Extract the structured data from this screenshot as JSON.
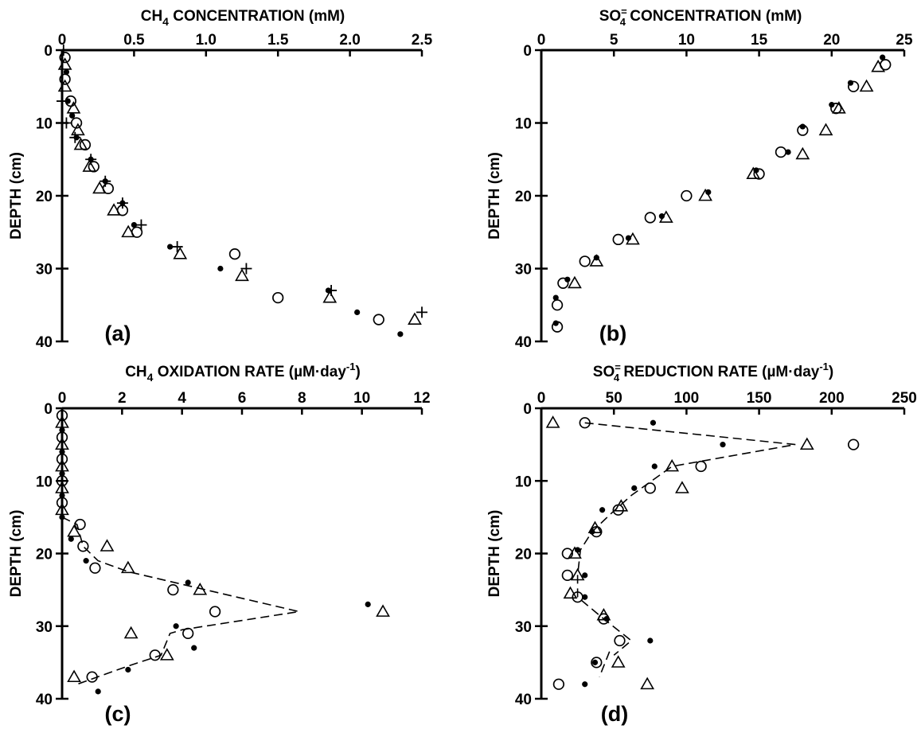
{
  "chart_data": [
    {
      "id": "a",
      "type": "scatter",
      "panel_label": "(a)",
      "xlabel_prefix": "CH",
      "xlabel_sub": "4",
      "xlabel_rest": " CONCENTRATION (mM)",
      "ylabel": "DEPTH (cm)",
      "xlim": [
        0,
        2.5
      ],
      "ylim": [
        0,
        40
      ],
      "y_reversed": true,
      "x_ticks": [
        "0",
        "0.5",
        "1.0",
        "1.5",
        "2.0",
        "2.5"
      ],
      "y_ticks": [
        "0",
        "10",
        "20",
        "30",
        "40"
      ],
      "series": [
        {
          "marker": "dot",
          "points": [
            [
              0.03,
              3
            ],
            [
              0.04,
              7
            ],
            [
              0.07,
              9
            ],
            [
              0.1,
              12
            ],
            [
              0.2,
              15
            ],
            [
              0.3,
              18
            ],
            [
              0.42,
              21
            ],
            [
              0.5,
              24
            ],
            [
              0.75,
              27
            ],
            [
              1.1,
              30
            ],
            [
              1.85,
              33
            ],
            [
              2.05,
              36
            ],
            [
              2.35,
              39
            ]
          ]
        },
        {
          "marker": "circle",
          "points": [
            [
              0.02,
              1
            ],
            [
              0.02,
              4
            ],
            [
              0.06,
              7
            ],
            [
              0.1,
              10
            ],
            [
              0.16,
              13
            ],
            [
              0.22,
              16
            ],
            [
              0.32,
              19
            ],
            [
              0.42,
              22
            ],
            [
              0.52,
              25
            ],
            [
              1.2,
              28
            ],
            [
              1.5,
              34
            ],
            [
              2.2,
              37
            ]
          ]
        },
        {
          "marker": "triangle",
          "points": [
            [
              0.02,
              2
            ],
            [
              0.02,
              5
            ],
            [
              0.08,
              8
            ],
            [
              0.11,
              11
            ],
            [
              0.13,
              13
            ],
            [
              0.19,
              16
            ],
            [
              0.26,
              19
            ],
            [
              0.36,
              22
            ],
            [
              0.46,
              25
            ],
            [
              0.82,
              28
            ],
            [
              1.25,
              31
            ],
            [
              1.86,
              34
            ],
            [
              2.45,
              37
            ]
          ]
        },
        {
          "marker": "plus",
          "points": [
            [
              0.01,
              0
            ],
            [
              0.0,
              7
            ],
            [
              0.03,
              10
            ],
            [
              0.09,
              12
            ],
            [
              0.2,
              15
            ],
            [
              0.3,
              18
            ],
            [
              0.42,
              21
            ],
            [
              0.55,
              24
            ],
            [
              0.8,
              27
            ],
            [
              1.28,
              30
            ],
            [
              1.87,
              33
            ],
            [
              2.5,
              36
            ]
          ]
        }
      ],
      "dashed_lines": []
    },
    {
      "id": "b",
      "type": "scatter",
      "panel_label": "(b)",
      "xlabel_prefix": "SO",
      "xlabel_sub": "4",
      "xlabel_sup": "=",
      "xlabel_rest": " CONCENTRATION (mM)",
      "ylabel": "DEPTH (cm)",
      "xlim": [
        0,
        25
      ],
      "ylim": [
        0,
        40
      ],
      "y_reversed": true,
      "x_ticks": [
        "0",
        "5",
        "10",
        "15",
        "20",
        "25"
      ],
      "y_ticks": [
        "0",
        "10",
        "20",
        "30",
        "40"
      ],
      "series": [
        {
          "marker": "dot",
          "points": [
            [
              23.5,
              1
            ],
            [
              21.3,
              4.5
            ],
            [
              20,
              7.5
            ],
            [
              18,
              10.5
            ],
            [
              17,
              14
            ],
            [
              14.8,
              16.5
            ],
            [
              11.5,
              19.5
            ],
            [
              8.3,
              22.8
            ],
            [
              6,
              25.8
            ],
            [
              3.8,
              28.5
            ],
            [
              1.8,
              31.5
            ],
            [
              1,
              34
            ],
            [
              1,
              37.5
            ]
          ]
        },
        {
          "marker": "circle",
          "points": [
            [
              23.7,
              2
            ],
            [
              21.5,
              5
            ],
            [
              20.3,
              8
            ],
            [
              18,
              11
            ],
            [
              16.5,
              14
            ],
            [
              15,
              17
            ],
            [
              10,
              20
            ],
            [
              7.5,
              23
            ],
            [
              5.3,
              26
            ],
            [
              3,
              29
            ],
            [
              1.5,
              32
            ],
            [
              1.1,
              35
            ],
            [
              1.1,
              38
            ]
          ]
        },
        {
          "marker": "triangle",
          "points": [
            [
              23.2,
              2.3
            ],
            [
              22.4,
              5
            ],
            [
              20.5,
              8
            ],
            [
              19.6,
              11
            ],
            [
              18,
              14.3
            ],
            [
              14.6,
              17
            ],
            [
              11.3,
              20
            ],
            [
              8.6,
              23
            ],
            [
              6.3,
              26
            ],
            [
              3.8,
              29
            ],
            [
              2.3,
              32
            ]
          ]
        }
      ],
      "dashed_lines": []
    },
    {
      "id": "c",
      "type": "scatter",
      "panel_label": "(c)",
      "xlabel_prefix": "CH",
      "xlabel_sub": "4",
      "xlabel_rest": " OXIDATION RATE (",
      "xlabel_unit": "µM·day",
      "xlabel_unit_sup": "-1",
      "xlabel_close": ")",
      "ylabel": "DEPTH (cm)",
      "xlim": [
        0,
        12
      ],
      "ylim": [
        0,
        40
      ],
      "y_reversed": true,
      "x_ticks": [
        "0",
        "2",
        "4",
        "6",
        "8",
        "10",
        "12"
      ],
      "y_ticks": [
        "0",
        "10",
        "20",
        "30",
        "40"
      ],
      "series": [
        {
          "marker": "dot",
          "points": [
            [
              0,
              3
            ],
            [
              0,
              6
            ],
            [
              0,
              9
            ],
            [
              0,
              12
            ],
            [
              0,
              15
            ],
            [
              0.3,
              18
            ],
            [
              0.8,
              21
            ],
            [
              4.2,
              24
            ],
            [
              10.2,
              27
            ],
            [
              3.8,
              30
            ],
            [
              4.4,
              33
            ],
            [
              2.2,
              36
            ],
            [
              1.2,
              39
            ]
          ]
        },
        {
          "marker": "circle",
          "points": [
            [
              0,
              1
            ],
            [
              0,
              4
            ],
            [
              0,
              7
            ],
            [
              0,
              10
            ],
            [
              0,
              13
            ],
            [
              0.6,
              16
            ],
            [
              0.7,
              19
            ],
            [
              1.1,
              22
            ],
            [
              3.7,
              25
            ],
            [
              5.1,
              28
            ],
            [
              4.2,
              31
            ],
            [
              3.1,
              34
            ],
            [
              1,
              37
            ]
          ]
        },
        {
          "marker": "triangle",
          "points": [
            [
              0,
              2
            ],
            [
              0,
              5
            ],
            [
              0,
              8
            ],
            [
              0,
              11
            ],
            [
              0,
              14
            ],
            [
              0.4,
              17
            ],
            [
              1.5,
              19
            ],
            [
              2.2,
              22
            ],
            [
              4.6,
              25
            ],
            [
              10.7,
              28
            ],
            [
              2.3,
              31
            ],
            [
              3.5,
              34
            ],
            [
              0.4,
              37
            ]
          ]
        }
      ],
      "dashed_lines": [
        [
          [
            0,
            15
          ],
          [
            0.5,
            16
          ],
          [
            0.7,
            19
          ],
          [
            1.2,
            21
          ],
          [
            2.2,
            22.5
          ],
          [
            7.9,
            28
          ],
          [
            4,
            30.5
          ],
          [
            3.6,
            31
          ],
          [
            3.3,
            34
          ],
          [
            2.2,
            35.5
          ],
          [
            0.5,
            38
          ]
        ]
      ]
    },
    {
      "id": "d",
      "type": "scatter",
      "panel_label": "(d)",
      "xlabel_prefix": "SO",
      "xlabel_sub": "4",
      "xlabel_sup": "=",
      "xlabel_rest": " REDUCTION RATE (",
      "xlabel_unit": "µM·day",
      "xlabel_unit_sup": "-1",
      "xlabel_close": ")",
      "ylabel": "DEPTH (cm)",
      "xlim": [
        0,
        250
      ],
      "ylim": [
        0,
        40
      ],
      "y_reversed": true,
      "x_ticks": [
        "0",
        "50",
        "100",
        "150",
        "200",
        "250"
      ],
      "y_ticks": [
        "0",
        "10",
        "20",
        "30",
        "40"
      ],
      "series": [
        {
          "marker": "dot",
          "points": [
            [
              77,
              2
            ],
            [
              125,
              5
            ],
            [
              78,
              8
            ],
            [
              64,
              11
            ],
            [
              42,
              14
            ],
            [
              35,
              17
            ],
            [
              25,
              19.5
            ],
            [
              30,
              23
            ],
            [
              30,
              26
            ],
            [
              45,
              29
            ],
            [
              75,
              32
            ],
            [
              37,
              35
            ],
            [
              30,
              38
            ]
          ]
        },
        {
          "marker": "circle",
          "points": [
            [
              30,
              2
            ],
            [
              215,
              5
            ],
            [
              110,
              8
            ],
            [
              75,
              11
            ],
            [
              53,
              14
            ],
            [
              38,
              17
            ],
            [
              18,
              20
            ],
            [
              18,
              23
            ],
            [
              25,
              26
            ],
            [
              43,
              29
            ],
            [
              54,
              32
            ],
            [
              38,
              35
            ],
            [
              12,
              38
            ]
          ]
        },
        {
          "marker": "triangle",
          "points": [
            [
              8,
              2
            ],
            [
              183,
              5
            ],
            [
              90,
              8
            ],
            [
              97,
              11
            ],
            [
              55,
              13.5
            ],
            [
              37,
              16.5
            ],
            [
              23,
              20
            ],
            [
              25,
              23
            ],
            [
              20,
              25.5
            ],
            [
              43,
              28.5
            ],
            [
              53,
              35
            ],
            [
              73,
              38
            ]
          ]
        }
      ],
      "dashed_lines": [
        [
          [
            30,
            2
          ],
          [
            175,
            5
          ],
          [
            90,
            8
          ],
          [
            62,
            12
          ],
          [
            48,
            14.5
          ],
          [
            35,
            17
          ],
          [
            27,
            19.5
          ],
          [
            25,
            23
          ],
          [
            25,
            26
          ],
          [
            43,
            29
          ],
          [
            62,
            32
          ],
          [
            50,
            34
          ]
        ],
        [
          [
            47,
            33.5
          ],
          [
            40,
            37
          ]
        ]
      ]
    }
  ]
}
